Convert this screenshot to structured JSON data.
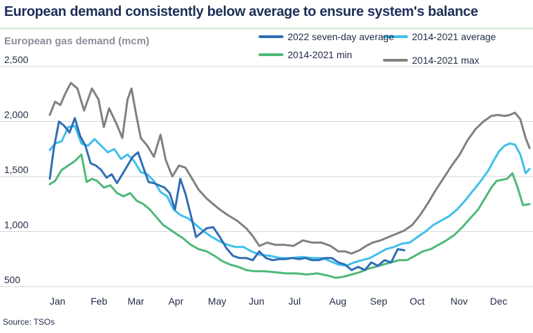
{
  "title": "European demand consistently below average to ensure system's balance",
  "source": "Source: TSOs",
  "colors": {
    "title": "#1d2f57",
    "grid": "#d6d6d6",
    "series_2022": "#2f6db5",
    "series_avg": "#3fc0ea",
    "series_min": "#4fb87a",
    "series_max": "#808080"
  },
  "chart_data": {
    "type": "line",
    "ylabel": "European gas demand (mcm)",
    "xlabel": "",
    "ylim": [
      500,
      2500
    ],
    "yticks": [
      "2,500",
      "2,000",
      "1,500",
      "1,000",
      "500"
    ],
    "ytick_values": [
      2500,
      2000,
      1500,
      1000,
      500
    ],
    "x_tick_labels": [
      "Jan",
      "Feb",
      "Mar",
      "Apr",
      "May",
      "Jun",
      "Jul",
      "Aug",
      "Sep",
      "Oct",
      "Nov",
      "Dec"
    ],
    "x_tick_days": [
      1,
      32,
      60,
      91,
      121,
      152,
      182,
      213,
      244,
      274,
      305,
      335
    ],
    "grid": "horizontal",
    "legend_position": "top-right",
    "series": [
      {
        "name": "2014-2021 max",
        "color_key": "series_max",
        "x": [
          1,
          5,
          9,
          13,
          17,
          22,
          27,
          33,
          38,
          42,
          46,
          52,
          56,
          60,
          63,
          66,
          70,
          75,
          80,
          85,
          89,
          94,
          99,
          104,
          109,
          114,
          120,
          125,
          130,
          136,
          143,
          150,
          155,
          160,
          166,
          172,
          179,
          186,
          193,
          200,
          207,
          214,
          220,
          225,
          230,
          236,
          241,
          246,
          252,
          258,
          264,
          270,
          276,
          282,
          288,
          294,
          300,
          306,
          312,
          318,
          324,
          330,
          336,
          341,
          346,
          350,
          354,
          358,
          362,
          365
        ],
        "y": [
          2060,
          2180,
          2150,
          2260,
          2350,
          2300,
          2100,
          2300,
          2200,
          1950,
          2120,
          1970,
          1850,
          2200,
          2300,
          2100,
          1850,
          1780,
          1680,
          1880,
          1650,
          1500,
          1600,
          1580,
          1480,
          1380,
          1300,
          1250,
          1200,
          1150,
          1100,
          1030,
          960,
          870,
          900,
          880,
          880,
          870,
          920,
          900,
          900,
          870,
          820,
          820,
          800,
          830,
          870,
          900,
          920,
          950,
          980,
          1010,
          1060,
          1150,
          1260,
          1380,
          1490,
          1600,
          1700,
          1830,
          1930,
          2000,
          2050,
          2060,
          2050,
          2060,
          2080,
          2020,
          1850,
          1760
        ]
      },
      {
        "name": "2014-2021 average",
        "color_key": "series_avg",
        "x": [
          1,
          5,
          10,
          15,
          20,
          25,
          30,
          35,
          40,
          45,
          50,
          55,
          60,
          65,
          70,
          75,
          80,
          85,
          90,
          95,
          100,
          106,
          112,
          118,
          124,
          130,
          136,
          142,
          148,
          154,
          160,
          168,
          176,
          184,
          192,
          200,
          208,
          214,
          220,
          226,
          232,
          238,
          244,
          250,
          256,
          262,
          268,
          274,
          280,
          286,
          292,
          298,
          304,
          310,
          316,
          322,
          328,
          334,
          338,
          342,
          346,
          350,
          354,
          358,
          362,
          365
        ],
        "y": [
          1740,
          1800,
          1820,
          1950,
          1960,
          1800,
          1780,
          1840,
          1780,
          1720,
          1750,
          1660,
          1700,
          1640,
          1540,
          1520,
          1460,
          1360,
          1320,
          1200,
          1150,
          1120,
          1060,
          1000,
          950,
          910,
          880,
          860,
          860,
          820,
          790,
          780,
          760,
          760,
          770,
          760,
          760,
          730,
          700,
          690,
          720,
          740,
          760,
          800,
          840,
          860,
          890,
          900,
          950,
          1000,
          1060,
          1100,
          1140,
          1200,
          1280,
          1370,
          1460,
          1560,
          1650,
          1730,
          1780,
          1800,
          1790,
          1700,
          1530,
          1570
        ]
      },
      {
        "name": "2014-2021 min",
        "color_key": "series_min",
        "x": [
          1,
          5,
          10,
          15,
          20,
          25,
          29,
          33,
          37,
          42,
          47,
          52,
          57,
          62,
          67,
          72,
          77,
          82,
          87,
          92,
          97,
          102,
          108,
          114,
          120,
          126,
          132,
          138,
          144,
          150,
          156,
          164,
          172,
          180,
          188,
          196,
          204,
          212,
          218,
          224,
          230,
          236,
          242,
          248,
          254,
          260,
          266,
          272,
          278,
          284,
          290,
          296,
          302,
          308,
          314,
          320,
          326,
          332,
          336,
          340,
          344,
          348,
          352,
          356,
          360,
          365
        ],
        "y": [
          1430,
          1460,
          1560,
          1600,
          1640,
          1700,
          1450,
          1480,
          1460,
          1400,
          1420,
          1350,
          1320,
          1350,
          1280,
          1250,
          1200,
          1130,
          1060,
          1020,
          980,
          940,
          880,
          840,
          820,
          780,
          730,
          700,
          680,
          650,
          640,
          640,
          630,
          620,
          620,
          610,
          620,
          600,
          580,
          590,
          610,
          630,
          660,
          680,
          700,
          720,
          740,
          740,
          780,
          820,
          840,
          880,
          920,
          970,
          1040,
          1120,
          1200,
          1320,
          1400,
          1460,
          1470,
          1480,
          1530,
          1400,
          1240,
          1250
        ]
      },
      {
        "name": "2022 seven-day average",
        "color_key": "series_2022",
        "x": [
          1,
          4,
          8,
          12,
          16,
          20,
          24,
          28,
          32,
          36,
          40,
          44,
          48,
          52,
          56,
          60,
          64,
          68,
          72,
          76,
          80,
          84,
          88,
          92,
          96,
          100,
          104,
          108,
          112,
          116,
          120,
          125,
          130,
          135,
          140,
          145,
          150,
          155,
          160,
          165,
          170,
          175,
          180,
          185,
          190,
          195,
          200,
          205,
          210,
          215,
          220,
          225,
          230,
          235,
          240,
          245,
          250,
          255,
          260,
          265,
          270
        ],
        "y": [
          1480,
          1750,
          2000,
          1960,
          1900,
          2030,
          1870,
          1780,
          1620,
          1600,
          1560,
          1490,
          1520,
          1440,
          1520,
          1600,
          1680,
          1720,
          1580,
          1450,
          1440,
          1420,
          1400,
          1350,
          1200,
          1480,
          1340,
          1150,
          950,
          990,
          1030,
          1040,
          950,
          850,
          780,
          760,
          760,
          740,
          820,
          760,
          740,
          750,
          750,
          760,
          750,
          760,
          740,
          740,
          760,
          760,
          720,
          700,
          650,
          680,
          650,
          720,
          690,
          740,
          720,
          840,
          830
        ]
      }
    ]
  }
}
